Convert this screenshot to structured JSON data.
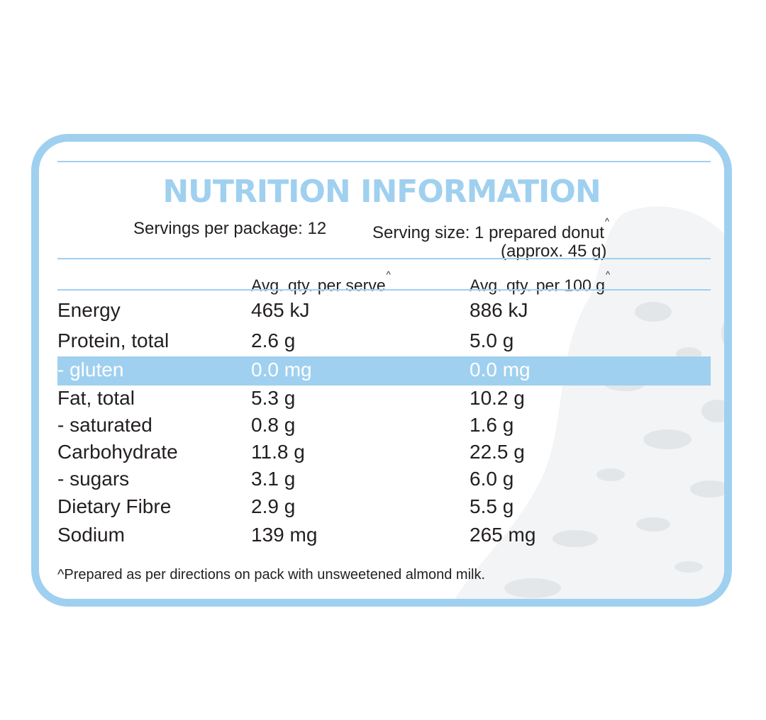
{
  "title": "NUTRITION INFORMATION",
  "servings_per_package": "Servings per package: 12",
  "serving_size_line1": "Serving size: 1 prepared donut",
  "serving_size_caret": "^",
  "serving_size_line2": "(approx. 45 g)",
  "columns": {
    "per_serve": "Avg. qty. per serve",
    "per_serve_caret": "^",
    "per_100g": "Avg. qty. per 100 g",
    "per_100g_caret": "^"
  },
  "rows": [
    {
      "name": "Energy",
      "per_serve": "465 kJ",
      "per_100g": "886 kJ"
    },
    {
      "name": "Protein, total",
      "per_serve": "2.6 g",
      "per_100g": "5.0 g"
    },
    {
      "name": "- gluten",
      "per_serve": "0.0 mg",
      "per_100g": "0.0 mg"
    },
    {
      "name": "Fat, total",
      "per_serve": "5.3 g",
      "per_100g": "10.2 g"
    },
    {
      "name": "- saturated",
      "per_serve": "0.8 g",
      "per_100g": "1.6 g"
    },
    {
      "name": "Carbohydrate",
      "per_serve": "11.8 g",
      "per_100g": "22.5 g"
    },
    {
      "name": "- sugars",
      "per_serve": "3.1 g",
      "per_100g": "6.0 g"
    },
    {
      "name": "Dietary Fibre",
      "per_serve": "2.9 g",
      "per_100g": "5.5 g"
    },
    {
      "name": "Sodium",
      "per_serve": "139 mg",
      "per_100g": "265 mg"
    }
  ],
  "footnote": "^Prepared as per directions on pack with unsweetened almond milk.",
  "colors": {
    "accent": "#9fd0ef",
    "text": "#231f20",
    "highlight_text": "#ffffff"
  }
}
